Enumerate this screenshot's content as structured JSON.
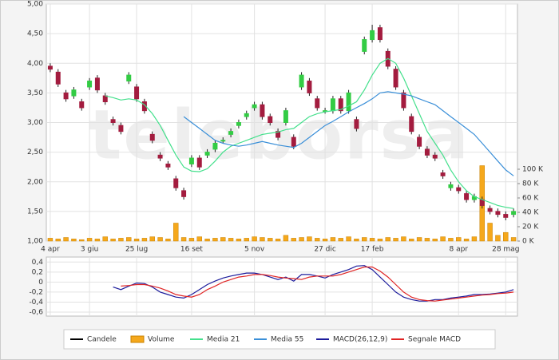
{
  "watermark": "teleborsa",
  "chart_data": [
    {
      "type": "candlestick",
      "candle_name": "Candele",
      "up_color": "#33cc44",
      "down_color": "#a31c3f",
      "categories": [
        "4 apr",
        null,
        null,
        null,
        null,
        "3 giu",
        null,
        null,
        null,
        null,
        null,
        "25 lug",
        null,
        null,
        null,
        null,
        null,
        null,
        "16 set",
        null,
        null,
        null,
        null,
        null,
        null,
        null,
        "5 nov",
        null,
        null,
        null,
        null,
        null,
        null,
        null,
        null,
        "27 dic",
        null,
        null,
        null,
        null,
        null,
        "17 feb",
        null,
        null,
        null,
        null,
        null,
        null,
        null,
        null,
        null,
        null,
        "8 apr",
        null,
        null,
        null,
        null,
        null,
        "28 mag",
        null
      ],
      "open": [
        3.95,
        3.85,
        3.5,
        3.45,
        3.35,
        3.6,
        3.75,
        3.45,
        3.05,
        2.95,
        3.7,
        3.6,
        3.35,
        2.8,
        2.45,
        2.3,
        2.05,
        1.85,
        2.3,
        2.4,
        2.45,
        2.55,
        2.7,
        2.8,
        2.95,
        3.1,
        3.25,
        3.3,
        3.1,
        2.85,
        3.0,
        2.75,
        3.6,
        3.7,
        3.4,
        3.2,
        3.2,
        3.4,
        3.2,
        3.05,
        4.2,
        4.4,
        4.6,
        4.2,
        3.9,
        3.5,
        3.1,
        2.75,
        2.55,
        2.45,
        2.15,
        1.9,
        1.9,
        1.8,
        1.7,
        1.7,
        1.55,
        1.5,
        1.45,
        1.45
      ],
      "high": [
        4.0,
        3.9,
        3.55,
        3.6,
        3.4,
        3.75,
        3.8,
        3.5,
        3.1,
        3.0,
        3.85,
        3.65,
        3.4,
        2.85,
        2.5,
        2.35,
        2.1,
        1.9,
        2.45,
        2.45,
        2.55,
        2.7,
        2.75,
        2.9,
        3.05,
        3.2,
        3.35,
        3.35,
        3.15,
        2.9,
        3.25,
        2.8,
        3.85,
        3.75,
        3.45,
        3.25,
        3.45,
        3.45,
        3.55,
        3.1,
        4.45,
        4.65,
        4.65,
        4.25,
        3.95,
        3.55,
        3.15,
        2.8,
        2.6,
        2.5,
        2.2,
        2.0,
        1.95,
        1.85,
        1.8,
        1.75,
        1.6,
        1.55,
        1.5,
        1.55
      ],
      "low": [
        3.85,
        3.6,
        3.35,
        3.4,
        3.2,
        3.55,
        3.5,
        3.3,
        2.95,
        2.8,
        3.65,
        3.35,
        3.15,
        2.65,
        2.35,
        2.2,
        1.85,
        1.7,
        2.25,
        2.2,
        2.4,
        2.5,
        2.65,
        2.75,
        2.9,
        3.05,
        3.2,
        3.05,
        2.95,
        2.7,
        2.95,
        2.55,
        3.55,
        3.45,
        3.2,
        3.15,
        3.15,
        3.15,
        3.15,
        2.85,
        4.15,
        4.35,
        4.35,
        3.9,
        3.55,
        3.2,
        2.8,
        2.55,
        2.4,
        2.35,
        2.05,
        1.85,
        1.8,
        1.65,
        1.65,
        1.55,
        1.45,
        1.4,
        1.35,
        1.4
      ],
      "close": [
        3.9,
        3.65,
        3.4,
        3.55,
        3.25,
        3.7,
        3.55,
        3.35,
        3.0,
        2.85,
        3.8,
        3.4,
        3.2,
        2.7,
        2.4,
        2.25,
        1.9,
        1.75,
        2.4,
        2.25,
        2.5,
        2.65,
        2.7,
        2.85,
        3.0,
        3.15,
        3.3,
        3.1,
        3.0,
        2.75,
        3.2,
        2.6,
        3.8,
        3.5,
        3.25,
        3.2,
        3.4,
        3.2,
        3.5,
        2.9,
        4.4,
        4.55,
        4.4,
        3.95,
        3.6,
        3.25,
        2.85,
        2.6,
        2.45,
        2.4,
        2.1,
        1.95,
        1.85,
        1.7,
        1.75,
        1.6,
        1.5,
        1.45,
        1.4,
        1.5
      ],
      "series": [
        {
          "name": "Volume",
          "kind": "bar",
          "axis": "y2",
          "color": "#f5a81c",
          "values": [
            4,
            3,
            5,
            3,
            2,
            4,
            3,
            6,
            3,
            4,
            5,
            3,
            4,
            6,
            5,
            3,
            25,
            5,
            4,
            6,
            3,
            4,
            5,
            4,
            3,
            4,
            6,
            5,
            4,
            3,
            8,
            4,
            5,
            6,
            4,
            3,
            5,
            4,
            6,
            3,
            5,
            4,
            3,
            5,
            4,
            6,
            3,
            5,
            4,
            3,
            6,
            4,
            5,
            3,
            6,
            105,
            25,
            8,
            12,
            5
          ]
        },
        {
          "name": "Media 21",
          "kind": "line",
          "color": "#44e08c",
          "values": [
            null,
            null,
            null,
            null,
            null,
            null,
            null,
            3.45,
            3.42,
            3.38,
            3.4,
            3.38,
            3.3,
            3.15,
            2.95,
            2.7,
            2.45,
            2.25,
            2.18,
            2.17,
            2.22,
            2.35,
            2.5,
            2.6,
            2.65,
            2.7,
            2.75,
            2.8,
            2.82,
            2.84,
            2.88,
            2.9,
            3.0,
            3.1,
            3.15,
            3.18,
            3.2,
            3.22,
            3.28,
            3.35,
            3.55,
            3.8,
            4.0,
            4.08,
            4.0,
            3.75,
            3.45,
            3.15,
            2.85,
            2.65,
            2.45,
            2.2,
            2.0,
            1.85,
            1.75,
            1.7,
            1.65,
            1.6,
            1.57,
            1.55
          ]
        },
        {
          "name": "Media 55",
          "kind": "line",
          "color": "#3a8fd8",
          "values": [
            null,
            null,
            null,
            null,
            null,
            null,
            null,
            null,
            null,
            null,
            null,
            null,
            null,
            null,
            null,
            null,
            null,
            3.1,
            3.0,
            2.9,
            2.8,
            2.7,
            2.65,
            2.62,
            2.6,
            2.62,
            2.65,
            2.68,
            2.65,
            2.62,
            2.6,
            2.58,
            2.65,
            2.75,
            2.85,
            2.95,
            3.02,
            3.1,
            3.18,
            3.25,
            3.32,
            3.4,
            3.5,
            3.52,
            3.5,
            3.48,
            3.45,
            3.4,
            3.35,
            3.3,
            3.2,
            3.1,
            3.0,
            2.9,
            2.8,
            2.65,
            2.5,
            2.35,
            2.2,
            2.1
          ]
        }
      ],
      "ylim": [
        1,
        5
      ],
      "yticks": [
        {
          "value": 1,
          "label": "1,00"
        },
        {
          "value": 1.5,
          "label": "1,50"
        },
        {
          "value": 2,
          "label": "2,00"
        },
        {
          "value": 2.5,
          "label": "2,50"
        },
        {
          "value": 3,
          "label": "3,00"
        },
        {
          "value": 3.5,
          "label": "3,50"
        },
        {
          "value": 4,
          "label": "4,00"
        },
        {
          "value": 4.5,
          "label": "4,50"
        },
        {
          "value": 5,
          "label": "5,00"
        }
      ],
      "y2lim": [
        0,
        330
      ],
      "y2ticks": [
        {
          "value": 0,
          "label": "0 K"
        },
        {
          "value": 20,
          "label": "20 K"
        },
        {
          "value": 40,
          "label": "40 K"
        },
        {
          "value": 60,
          "label": "60 K"
        },
        {
          "value": 80,
          "label": "80 K"
        },
        {
          "value": 100,
          "label": "100 K"
        }
      ],
      "grid": true
    },
    {
      "type": "line",
      "series": [
        {
          "name": "MACD(26,12,9)",
          "color": "#1c1c9c",
          "values": [
            null,
            null,
            null,
            null,
            null,
            null,
            null,
            null,
            -0.1,
            -0.15,
            -0.08,
            -0.02,
            -0.03,
            -0.1,
            -0.2,
            -0.25,
            -0.3,
            -0.32,
            -0.25,
            -0.15,
            -0.05,
            0.02,
            0.08,
            0.12,
            0.15,
            0.18,
            0.18,
            0.15,
            0.1,
            0.05,
            0.1,
            0.02,
            0.15,
            0.15,
            0.12,
            0.08,
            0.15,
            0.2,
            0.25,
            0.32,
            0.33,
            0.25,
            0.1,
            -0.05,
            -0.2,
            -0.3,
            -0.35,
            -0.38,
            -0.38,
            -0.35,
            -0.35,
            -0.32,
            -0.3,
            -0.28,
            -0.25,
            -0.25,
            -0.24,
            -0.22,
            -0.2,
            -0.15
          ]
        },
        {
          "name": "Segnale MACD",
          "color": "#e02424",
          "values": [
            null,
            null,
            null,
            null,
            null,
            null,
            null,
            null,
            null,
            -0.08,
            -0.07,
            -0.05,
            -0.05,
            -0.08,
            -0.12,
            -0.18,
            -0.25,
            -0.28,
            -0.3,
            -0.25,
            -0.15,
            -0.08,
            0.0,
            0.05,
            0.1,
            0.12,
            0.15,
            0.15,
            0.13,
            0.1,
            0.08,
            0.07,
            0.05,
            0.1,
            0.12,
            0.12,
            0.12,
            0.15,
            0.2,
            0.25,
            0.3,
            0.3,
            0.22,
            0.1,
            -0.05,
            -0.2,
            -0.3,
            -0.35,
            -0.37,
            -0.38,
            -0.36,
            -0.34,
            -0.32,
            -0.3,
            -0.28,
            -0.26,
            -0.25,
            -0.23,
            -0.22,
            -0.2
          ]
        }
      ],
      "ylim": [
        -0.68,
        0.5
      ],
      "yticks": [
        {
          "value": 0.4,
          "label": "0,4"
        },
        {
          "value": 0.2,
          "label": "0,2"
        },
        0,
        {
          "value": -0.2,
          "label": "-0,2"
        },
        {
          "value": -0.4,
          "label": "-0,4"
        },
        {
          "value": -0.6,
          "label": "-0,6"
        }
      ],
      "grid": true
    }
  ]
}
